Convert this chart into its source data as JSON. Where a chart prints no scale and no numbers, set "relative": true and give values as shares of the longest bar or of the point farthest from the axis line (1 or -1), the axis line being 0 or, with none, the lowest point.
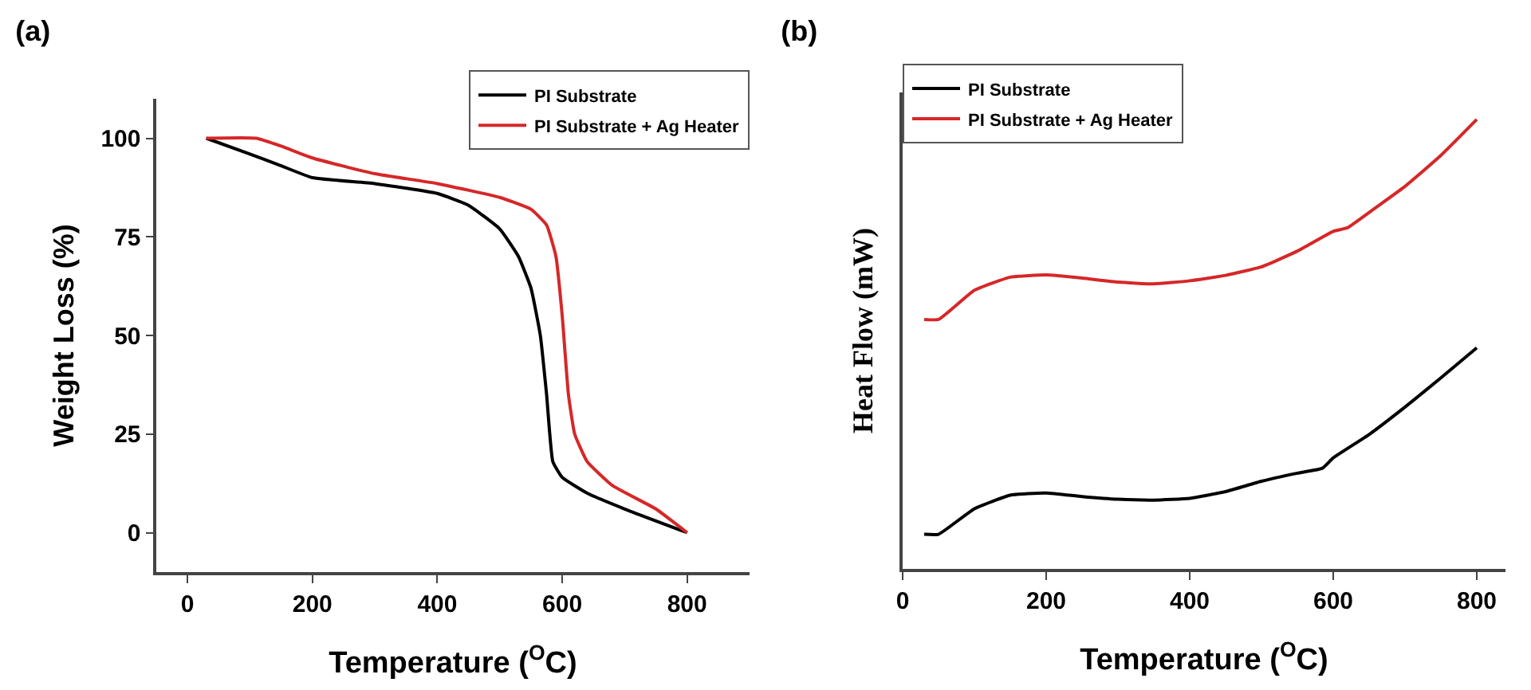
{
  "chart_data": [
    {
      "type": "line",
      "title": "(a)",
      "xlabel": "Temperature ($^{O}$C)",
      "ylabel": "Weight Loss (%)",
      "xlim": [
        -50,
        900
      ],
      "xticks": [
        0,
        200,
        400,
        600,
        800
      ],
      "ylim": [
        -10,
        110
      ],
      "yticks": [
        0,
        25,
        50,
        75,
        100
      ],
      "grid": false,
      "legend": "top right",
      "series": [
        {
          "name": "PI Substrate",
          "color": "#000000",
          "x": [
            30,
            100,
            150,
            200,
            300,
            400,
            450,
            500,
            530,
            550,
            565,
            575,
            585,
            600,
            640,
            700,
            800
          ],
          "values": [
            100,
            96,
            93,
            90,
            88.5,
            86,
            83,
            77,
            70,
            62,
            50,
            35,
            18,
            14,
            10,
            6,
            0
          ]
        },
        {
          "name": "PI Substrate + Ag Heater",
          "color": "#d62728",
          "x": [
            30,
            110,
            150,
            200,
            300,
            400,
            500,
            550,
            575,
            590,
            600,
            610,
            620,
            640,
            680,
            750,
            800
          ],
          "values": [
            100,
            100,
            98,
            95,
            91,
            88.5,
            85,
            82,
            78,
            70,
            55,
            35,
            25,
            18,
            12,
            6,
            0
          ]
        }
      ]
    },
    {
      "type": "line",
      "title": "(b)",
      "xlabel": "Temperature ($^{O}$C)",
      "ylabel": "Heat Flow (mW)",
      "xlim": [
        0,
        840
      ],
      "xticks": [
        0,
        200,
        400,
        600,
        800
      ],
      "relative": true,
      "tick_labels": "x",
      "grid": false,
      "legend": "top left",
      "series": [
        {
          "name": "PI Substrate",
          "color": "#000000",
          "x": [
            30,
            50,
            100,
            150,
            200,
            250,
            300,
            350,
            400,
            450,
            500,
            550,
            585,
            600,
            650,
            700,
            750,
            800
          ],
          "values": [
            0.077,
            0.077,
            0.134,
            0.164,
            0.169,
            0.161,
            0.155,
            0.153,
            0.157,
            0.172,
            0.195,
            0.213,
            0.224,
            0.247,
            0.299,
            0.36,
            0.425,
            0.492
          ]
        },
        {
          "name": "PI Substrate + Ag Heater",
          "color": "#d62728",
          "x": [
            30,
            50,
            100,
            150,
            200,
            250,
            300,
            350,
            400,
            450,
            500,
            550,
            600,
            620,
            650,
            700,
            750,
            800
          ],
          "values": [
            0.555,
            0.555,
            0.62,
            0.649,
            0.654,
            0.647,
            0.638,
            0.634,
            0.641,
            0.653,
            0.672,
            0.707,
            0.751,
            0.759,
            0.793,
            0.851,
            0.92,
            1
          ]
        }
      ]
    }
  ]
}
